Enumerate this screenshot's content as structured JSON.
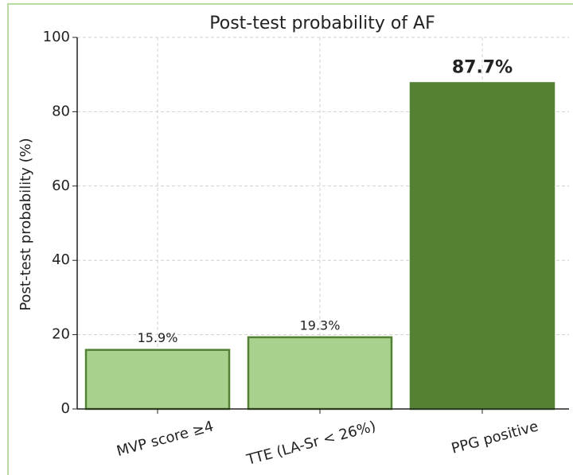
{
  "chart_data": {
    "type": "bar",
    "title": "Post-test probability of AF",
    "ylabel": "Post-test probability (%)",
    "categories": [
      "MVP score ≥4",
      "TTE (LA-Sr < 26%)",
      "PPG positive"
    ],
    "values": [
      15.9,
      19.3,
      87.7
    ],
    "value_labels": [
      "15.9%",
      "19.3%",
      "87.7%"
    ],
    "colors": [
      "#a9d18e",
      "#a9d18e",
      "#548235"
    ],
    "edgecolor": "#548235",
    "label_weight": [
      "normal",
      "normal",
      "bold"
    ],
    "ylim": [
      0,
      100
    ],
    "yticks": [
      0,
      20,
      40,
      60,
      80,
      100
    ],
    "grid": true
  }
}
